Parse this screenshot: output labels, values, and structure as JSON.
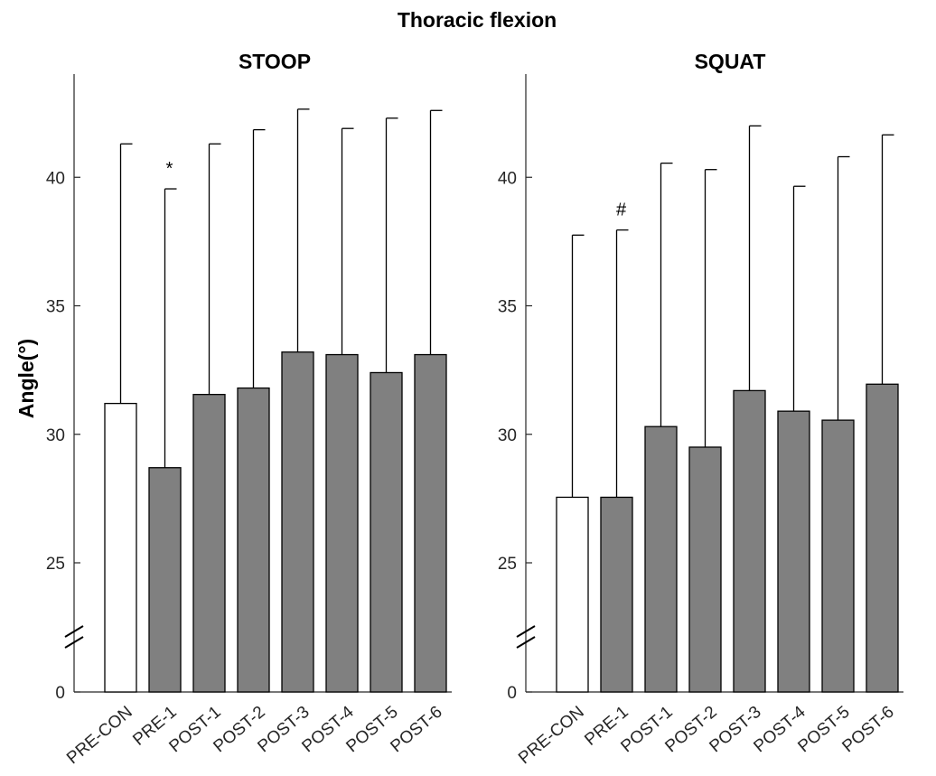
{
  "title": "Thoracic flexion",
  "ylabel": "Angle(°)",
  "chart_data": [
    {
      "type": "bar",
      "title": "STOOP",
      "categories": [
        "PRE-CON",
        "PRE-1",
        "POST-1",
        "POST-2",
        "POST-3",
        "POST-4",
        "POST-5",
        "POST-6"
      ],
      "values": [
        31.2,
        28.7,
        31.55,
        31.8,
        33.2,
        33.1,
        32.4,
        33.1
      ],
      "error_upper": [
        41.3,
        39.55,
        41.3,
        41.85,
        42.65,
        41.9,
        42.3,
        42.6
      ],
      "bar_colors": [
        "#ffffff",
        "#808080",
        "#808080",
        "#808080",
        "#808080",
        "#808080",
        "#808080",
        "#808080"
      ],
      "annotations": [
        {
          "category": "PRE-1",
          "text": "*"
        }
      ],
      "ylabel": "Angle(°)",
      "yticks": [
        0,
        25,
        30,
        35,
        40
      ],
      "ylim": [
        20,
        44
      ],
      "axis_break": true,
      "grid": false
    },
    {
      "type": "bar",
      "title": "SQUAT",
      "categories": [
        "PRE-CON",
        "PRE-1",
        "POST-1",
        "POST-2",
        "POST-3",
        "POST-4",
        "POST-5",
        "POST-6"
      ],
      "values": [
        27.55,
        27.55,
        30.3,
        29.5,
        31.7,
        30.9,
        30.55,
        31.95
      ],
      "error_upper": [
        37.75,
        37.95,
        40.55,
        40.3,
        42.0,
        39.65,
        40.8,
        41.65
      ],
      "bar_colors": [
        "#ffffff",
        "#808080",
        "#808080",
        "#808080",
        "#808080",
        "#808080",
        "#808080",
        "#808080"
      ],
      "annotations": [
        {
          "category": "PRE-1",
          "text": "#"
        }
      ],
      "yticks": [
        0,
        25,
        30,
        35,
        40
      ],
      "ylim": [
        20,
        44
      ],
      "axis_break": true,
      "grid": false
    }
  ]
}
